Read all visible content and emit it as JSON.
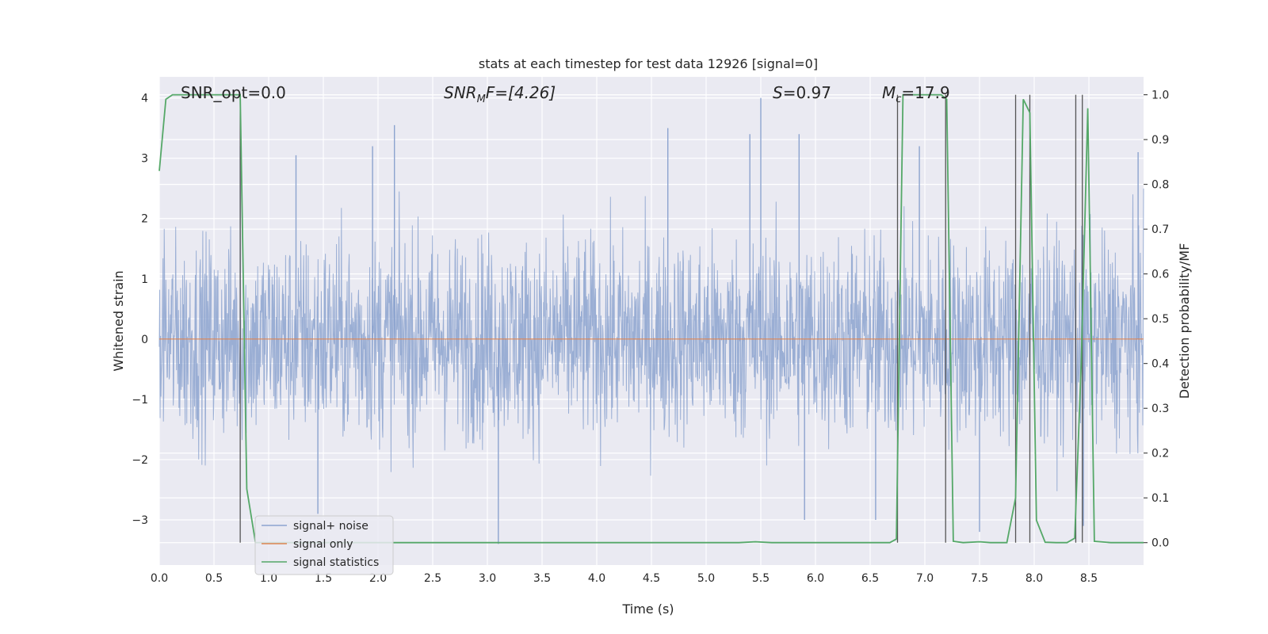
{
  "chart_data": {
    "type": "line",
    "title": "stats at each timestep for test data 12926 [signal=0]",
    "xlabel": "Time (s)",
    "ylabel": "Whitened strain",
    "ylabel_right": "Detection probability/MF",
    "xlim": [
      0,
      9.0
    ],
    "ylim": [
      -3.75,
      4.35
    ],
    "ylim_right": [
      -0.05,
      1.04
    ],
    "x_ticks": [
      "0.0",
      "0.5",
      "1.0",
      "1.5",
      "2.0",
      "2.5",
      "3.0",
      "3.5",
      "4.0",
      "4.5",
      "5.0",
      "5.5",
      "6.0",
      "6.5",
      "7.0",
      "7.5",
      "8.0",
      "8.5"
    ],
    "y_ticks": [
      "−3",
      "−2",
      "−1",
      "0",
      "1",
      "2",
      "3",
      "4"
    ],
    "y_ticks_right": [
      "0.0",
      "0.1",
      "0.2",
      "0.3",
      "0.4",
      "0.5",
      "0.6",
      "0.7",
      "0.8",
      "0.9",
      "1.0"
    ],
    "grid": true,
    "legend_position": "lower-left",
    "annotations": {
      "snr_opt": "SNR_opt=0.0",
      "snr_mf_base": "SNR",
      "snr_mf_sub": "M",
      "snr_mf_rest": "F=[4.26]",
      "s_italic": "S",
      "s_rest": "=0.97",
      "mc_base": "M",
      "mc_sub": "c",
      "mc_rest": "=17.9"
    },
    "series": [
      {
        "name": "signal+ noise",
        "color": "#8ca3cf",
        "description_values": "noise band approx ±1.8 with spikes",
        "spikes": [
          {
            "x": 0.74,
            "y": 3.2
          },
          {
            "x": 1.25,
            "y": 3.05
          },
          {
            "x": 1.95,
            "y": 3.2
          },
          {
            "x": 2.15,
            "y": 3.55
          },
          {
            "x": 4.65,
            "y": 3.5
          },
          {
            "x": 5.4,
            "y": 3.4
          },
          {
            "x": 5.5,
            "y": 4.0
          },
          {
            "x": 5.85,
            "y": 3.4
          },
          {
            "x": 6.95,
            "y": 3.2
          },
          {
            "x": 8.95,
            "y": 3.1
          },
          {
            "x": 1.45,
            "y": -2.9
          },
          {
            "x": 3.1,
            "y": -3.4
          },
          {
            "x": 5.9,
            "y": -3.0
          },
          {
            "x": 6.55,
            "y": -3.0
          },
          {
            "x": 7.5,
            "y": -3.2
          },
          {
            "x": 8.45,
            "y": -3.1
          }
        ]
      },
      {
        "name": "signal only",
        "color": "#dd8452",
        "x": [
          0,
          9.0
        ],
        "y": [
          0,
          0
        ]
      },
      {
        "name": "signal statistics",
        "color": "#55a868",
        "axis": "right",
        "x": [
          0.0,
          0.06,
          0.12,
          0.2,
          0.3,
          0.4,
          0.5,
          0.6,
          0.7,
          0.74,
          0.8,
          0.88,
          1.0,
          2.0,
          3.0,
          4.0,
          5.0,
          5.3,
          5.45,
          5.6,
          6.0,
          6.5,
          6.68,
          6.74,
          6.8,
          6.9,
          7.0,
          7.1,
          7.15,
          7.2,
          7.26,
          7.35,
          7.5,
          7.6,
          7.75,
          7.83,
          7.9,
          7.96,
          8.02,
          8.1,
          8.2,
          8.3,
          8.37,
          8.43,
          8.49,
          8.55,
          8.7,
          9.0
        ],
        "y": [
          0.83,
          0.99,
          1.0,
          1.0,
          1.0,
          1.0,
          1.0,
          1.0,
          1.0,
          1.0,
          0.12,
          0.0,
          0.0,
          0.0,
          0.0,
          0.0,
          0.0,
          0.0,
          0.002,
          0.0,
          0.0,
          0.0,
          0.0,
          0.008,
          1.0,
          1.0,
          1.0,
          1.0,
          1.0,
          0.99,
          0.003,
          0.0,
          0.002,
          0.0,
          0.0,
          0.1,
          0.99,
          0.96,
          0.05,
          0.001,
          0.0,
          0.0,
          0.01,
          0.4,
          0.97,
          0.003,
          0.0,
          0.0
        ]
      }
    ],
    "vertical_markers_x": [
      0.74,
      6.75,
      7.19,
      7.83,
      7.96,
      8.38,
      8.44
    ]
  }
}
